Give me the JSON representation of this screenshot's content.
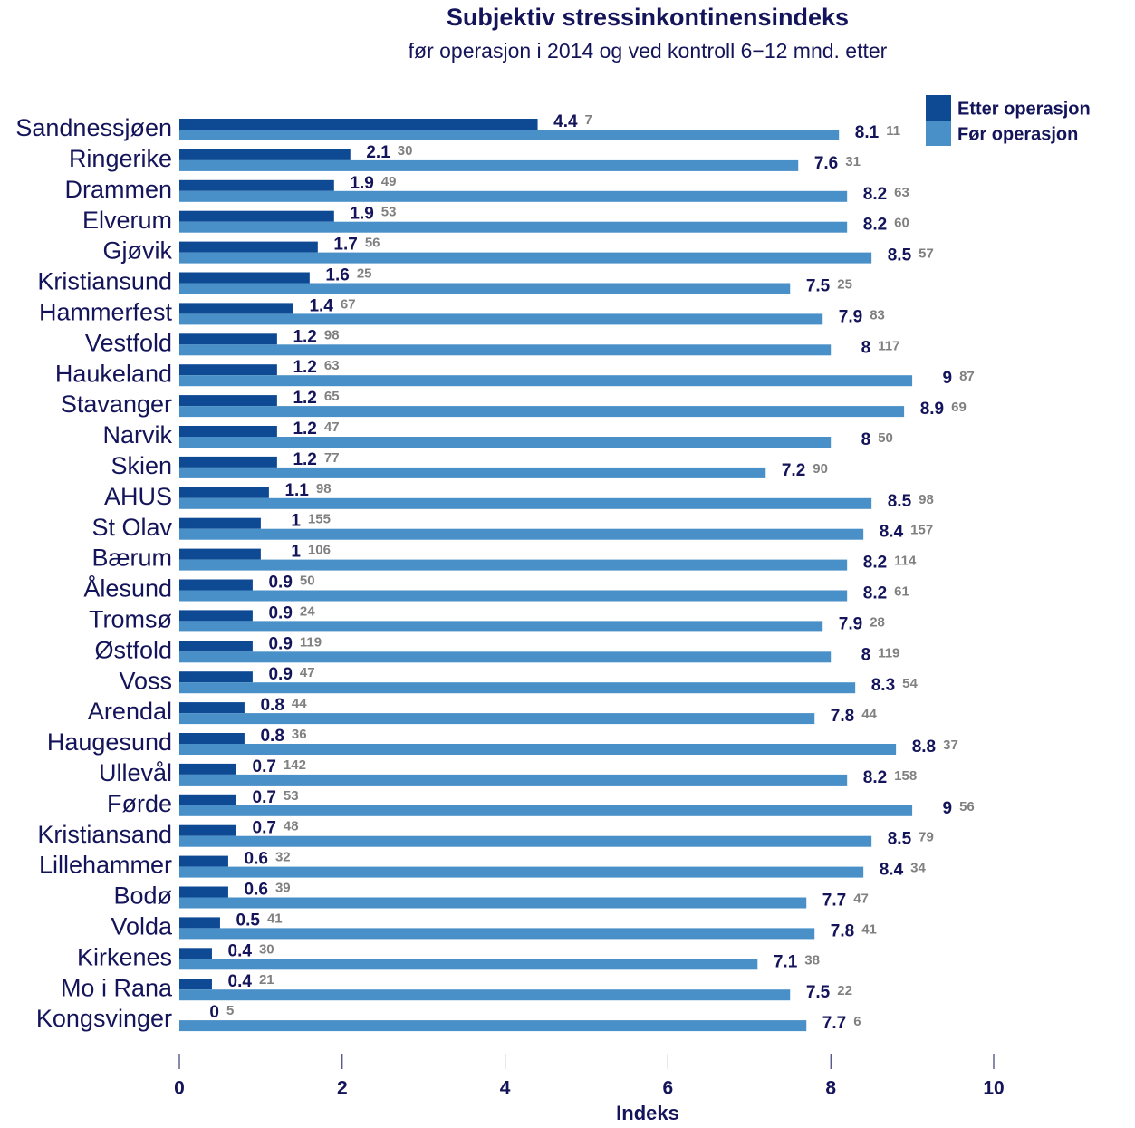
{
  "chart_data": {
    "type": "hbar",
    "title": "Subjektiv stressinkontinensindeks",
    "subtitle": "før operasjon i 2014 og ved kontroll 6−12 mnd. etter",
    "xlabel": "Indeks",
    "categories": [
      "Sandnessjøen",
      "Ringerike",
      "Drammen",
      "Elverum",
      "Gjøvik",
      "Kristiansund",
      "Hammerfest",
      "Vestfold",
      "Haukeland",
      "Stavanger",
      "Narvik",
      "Skien",
      "AHUS",
      "St Olav",
      "Bærum",
      "Ålesund",
      "Tromsø",
      "Østfold",
      "Voss",
      "Arendal",
      "Haugesund",
      "Ullevål",
      "Førde",
      "Kristiansand",
      "Lillehammer",
      "Bodø",
      "Volda",
      "Kirkenes",
      "Mo i Rana",
      "Kongsvinger"
    ],
    "series": [
      {
        "name": "Etter operasjon",
        "color": "#0e4a94",
        "values": [
          4.4,
          2.1,
          1.9,
          1.9,
          1.7,
          1.6,
          1.4,
          1.2,
          1.2,
          1.2,
          1.2,
          1.2,
          1.1,
          1,
          1,
          0.9,
          0.9,
          0.9,
          0.9,
          0.8,
          0.8,
          0.7,
          0.7,
          0.7,
          0.6,
          0.6,
          0.5,
          0.4,
          0.4,
          0
        ],
        "counts": [
          7,
          30,
          49,
          53,
          56,
          25,
          67,
          98,
          63,
          65,
          47,
          77,
          98,
          155,
          106,
          50,
          24,
          119,
          47,
          44,
          36,
          142,
          53,
          48,
          32,
          39,
          41,
          30,
          21,
          5
        ]
      },
      {
        "name": "Før operasjon",
        "color": "#4a90c8",
        "values": [
          8.1,
          7.6,
          8.2,
          8.2,
          8.5,
          7.5,
          7.9,
          8,
          9,
          8.9,
          8,
          7.2,
          8.5,
          8.4,
          8.2,
          8.2,
          7.9,
          8,
          8.3,
          7.8,
          8.8,
          8.2,
          9,
          8.5,
          8.4,
          7.7,
          7.8,
          7.1,
          7.5,
          7.7
        ],
        "counts": [
          11,
          31,
          63,
          60,
          57,
          25,
          83,
          117,
          87,
          69,
          50,
          90,
          98,
          157,
          114,
          61,
          28,
          119,
          54,
          44,
          37,
          158,
          56,
          79,
          34,
          47,
          41,
          38,
          22,
          6
        ]
      }
    ],
    "xlim": [
      0,
      10
    ],
    "xticks": [
      0,
      2,
      4,
      6,
      8,
      10
    ],
    "legend": "top-right"
  }
}
